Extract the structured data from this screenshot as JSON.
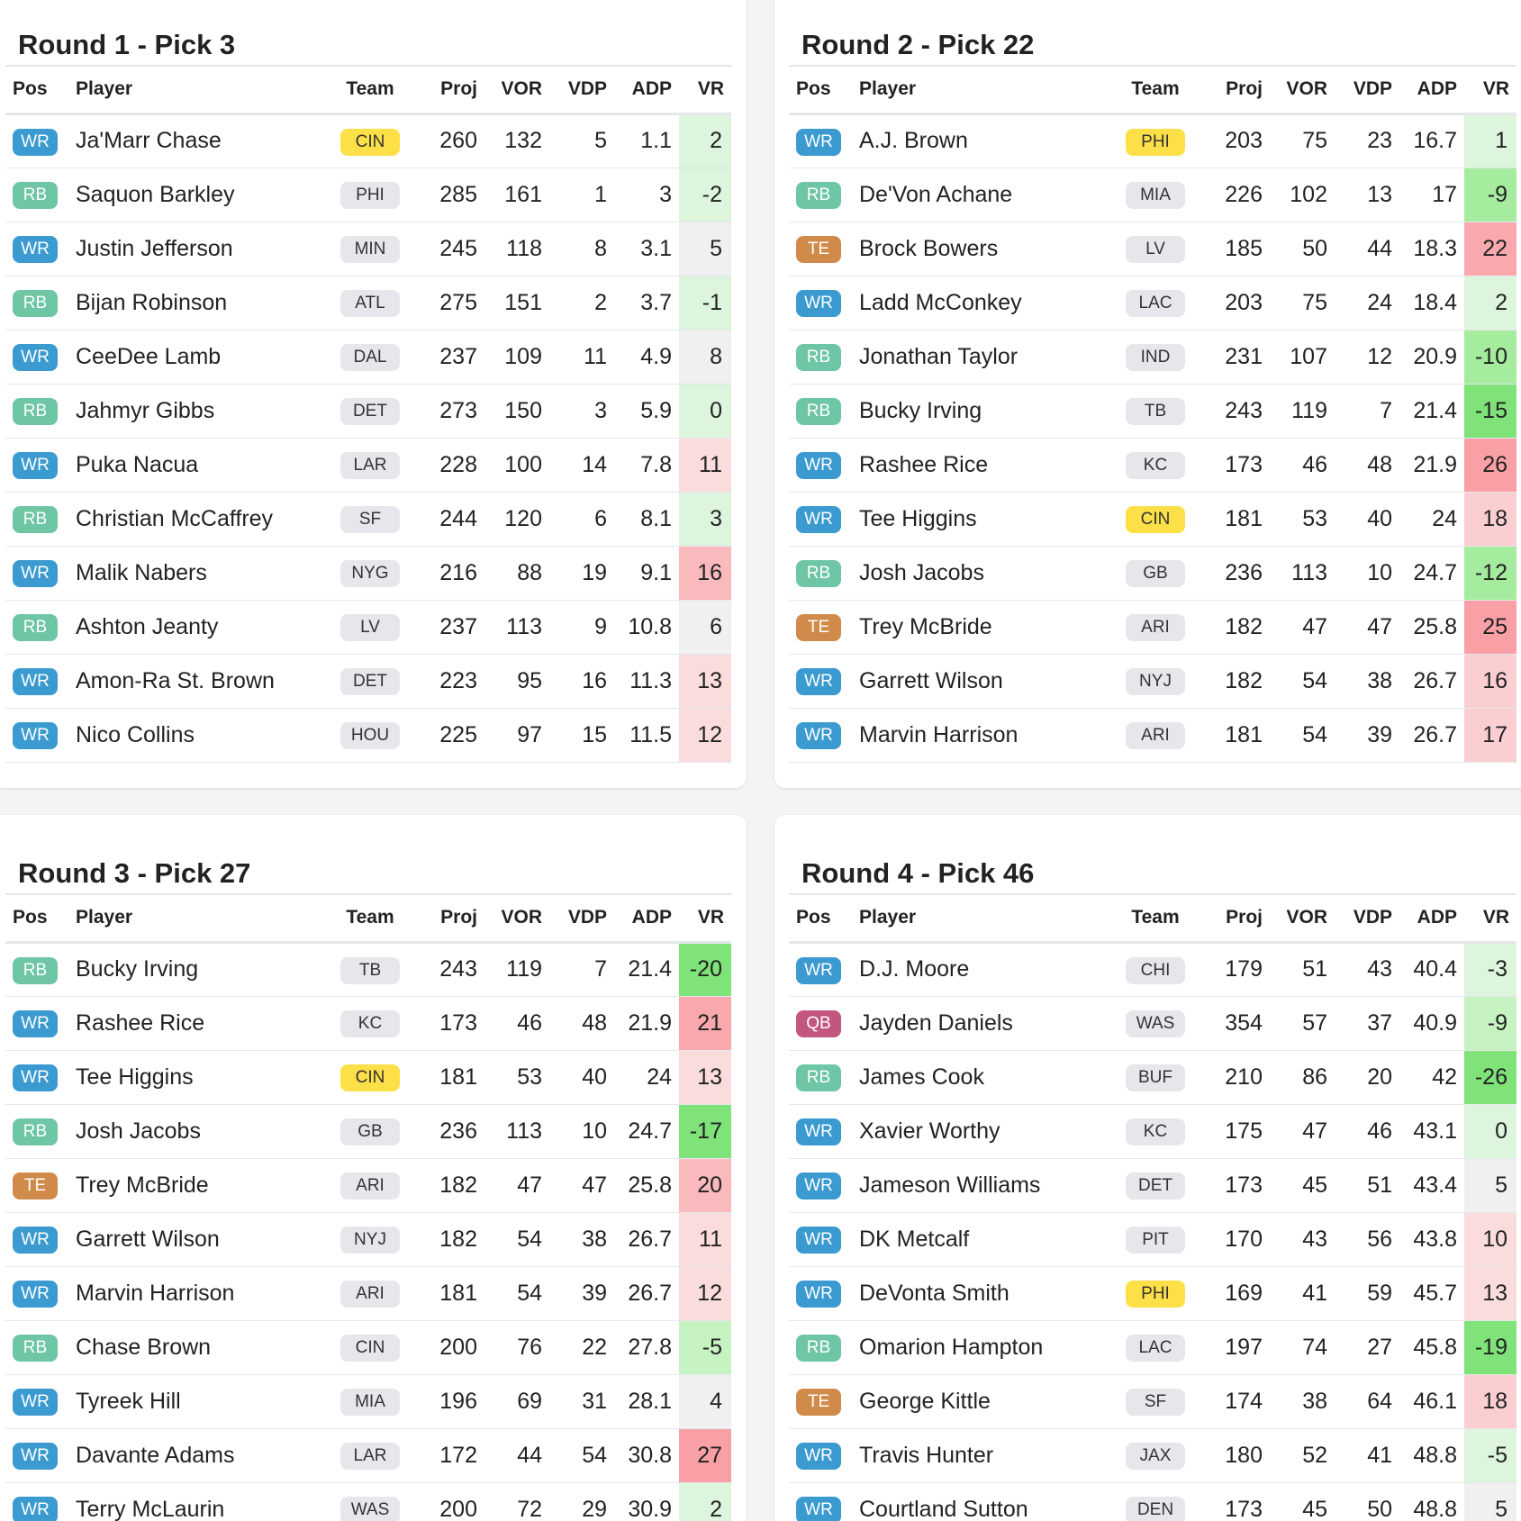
{
  "colors": {
    "WR": "#3b9ad0",
    "RB": "#6ec6a4",
    "TE": "#d08b4a",
    "QB": "#c2567e",
    "team_highlight": "#fde047",
    "vr_neutral": "#f0f0f0"
  },
  "headers": {
    "pos": "Pos",
    "player": "Player",
    "team": "Team",
    "proj": "Proj",
    "vor": "VOR",
    "vdp": "VDP",
    "adp": "ADP",
    "vr": "VR"
  },
  "cards": [
    {
      "title": "Round 1 - Pick 3",
      "rows": [
        {
          "pos": "WR",
          "player": "Ja'Marr Chase",
          "team": "CIN",
          "team_hl": true,
          "proj": "260",
          "vor": "132",
          "vdp": "5",
          "adp": "1.1",
          "vr": "2",
          "vr_bg": "#dcf5dc"
        },
        {
          "pos": "RB",
          "player": "Saquon Barkley",
          "team": "PHI",
          "team_hl": false,
          "proj": "285",
          "vor": "161",
          "vdp": "1",
          "adp": "3",
          "vr": "-2",
          "vr_bg": "#dcf5dc"
        },
        {
          "pos": "WR",
          "player": "Justin Jefferson",
          "team": "MIN",
          "team_hl": false,
          "proj": "245",
          "vor": "118",
          "vdp": "8",
          "adp": "3.1",
          "vr": "5",
          "vr_bg": "#f0f0f0"
        },
        {
          "pos": "RB",
          "player": "Bijan Robinson",
          "team": "ATL",
          "team_hl": false,
          "proj": "275",
          "vor": "151",
          "vdp": "2",
          "adp": "3.7",
          "vr": "-1",
          "vr_bg": "#dcf5dc"
        },
        {
          "pos": "WR",
          "player": "CeeDee Lamb",
          "team": "DAL",
          "team_hl": false,
          "proj": "237",
          "vor": "109",
          "vdp": "11",
          "adp": "4.9",
          "vr": "8",
          "vr_bg": "#f0f0f0"
        },
        {
          "pos": "RB",
          "player": "Jahmyr Gibbs",
          "team": "DET",
          "team_hl": false,
          "proj": "273",
          "vor": "150",
          "vdp": "3",
          "adp": "5.9",
          "vr": "0",
          "vr_bg": "#dcf5dc"
        },
        {
          "pos": "WR",
          "player": "Puka Nacua",
          "team": "LAR",
          "team_hl": false,
          "proj": "228",
          "vor": "100",
          "vdp": "14",
          "adp": "7.8",
          "vr": "11",
          "vr_bg": "#fbdcdc"
        },
        {
          "pos": "RB",
          "player": "Christian McCaffrey",
          "team": "SF",
          "team_hl": false,
          "proj": "244",
          "vor": "120",
          "vdp": "6",
          "adp": "8.1",
          "vr": "3",
          "vr_bg": "#dcf5dc"
        },
        {
          "pos": "WR",
          "player": "Malik Nabers",
          "team": "NYG",
          "team_hl": false,
          "proj": "216",
          "vor": "88",
          "vdp": "19",
          "adp": "9.1",
          "vr": "16",
          "vr_bg": "#f9b9bd"
        },
        {
          "pos": "RB",
          "player": "Ashton Jeanty",
          "team": "LV",
          "team_hl": false,
          "proj": "237",
          "vor": "113",
          "vdp": "9",
          "adp": "10.8",
          "vr": "6",
          "vr_bg": "#f0f0f0"
        },
        {
          "pos": "WR",
          "player": "Amon-Ra St. Brown",
          "team": "DET",
          "team_hl": false,
          "proj": "223",
          "vor": "95",
          "vdp": "16",
          "adp": "11.3",
          "vr": "13",
          "vr_bg": "#fbdcdc"
        },
        {
          "pos": "WR",
          "player": "Nico Collins",
          "team": "HOU",
          "team_hl": false,
          "proj": "225",
          "vor": "97",
          "vdp": "15",
          "adp": "11.5",
          "vr": "12",
          "vr_bg": "#fbdcdc"
        }
      ]
    },
    {
      "title": "Round 2 - Pick 22",
      "rows": [
        {
          "pos": "WR",
          "player": "A.J. Brown",
          "team": "PHI",
          "team_hl": true,
          "proj": "203",
          "vor": "75",
          "vdp": "23",
          "adp": "16.7",
          "vr": "1",
          "vr_bg": "#dcf5dc"
        },
        {
          "pos": "RB",
          "player": "De'Von Achane",
          "team": "MIA",
          "team_hl": false,
          "proj": "226",
          "vor": "102",
          "vdp": "13",
          "adp": "17",
          "vr": "-9",
          "vr_bg": "#a6ec9f"
        },
        {
          "pos": "TE",
          "player": "Brock Bowers",
          "team": "LV",
          "team_hl": false,
          "proj": "185",
          "vor": "50",
          "vdp": "44",
          "adp": "18.3",
          "vr": "22",
          "vr_bg": "#f9a9ae"
        },
        {
          "pos": "WR",
          "player": "Ladd McConkey",
          "team": "LAC",
          "team_hl": false,
          "proj": "203",
          "vor": "75",
          "vdp": "24",
          "adp": "18.4",
          "vr": "2",
          "vr_bg": "#dcf5dc"
        },
        {
          "pos": "RB",
          "player": "Jonathan Taylor",
          "team": "IND",
          "team_hl": false,
          "proj": "231",
          "vor": "107",
          "vdp": "12",
          "adp": "20.9",
          "vr": "-10",
          "vr_bg": "#a6ec9f"
        },
        {
          "pos": "RB",
          "player": "Bucky Irving",
          "team": "TB",
          "team_hl": false,
          "proj": "243",
          "vor": "119",
          "vdp": "7",
          "adp": "21.4",
          "vr": "-15",
          "vr_bg": "#7fe37a"
        },
        {
          "pos": "WR",
          "player": "Rashee Rice",
          "team": "KC",
          "team_hl": false,
          "proj": "173",
          "vor": "46",
          "vdp": "48",
          "adp": "21.9",
          "vr": "26",
          "vr_bg": "#f9a0a6"
        },
        {
          "pos": "WR",
          "player": "Tee Higgins",
          "team": "CIN",
          "team_hl": true,
          "proj": "181",
          "vor": "53",
          "vdp": "40",
          "adp": "24",
          "vr": "18",
          "vr_bg": "#fbcfd2"
        },
        {
          "pos": "RB",
          "player": "Josh Jacobs",
          "team": "GB",
          "team_hl": false,
          "proj": "236",
          "vor": "113",
          "vdp": "10",
          "adp": "24.7",
          "vr": "-12",
          "vr_bg": "#a6ec9f"
        },
        {
          "pos": "TE",
          "player": "Trey McBride",
          "team": "ARI",
          "team_hl": false,
          "proj": "182",
          "vor": "47",
          "vdp": "47",
          "adp": "25.8",
          "vr": "25",
          "vr_bg": "#f9a0a6"
        },
        {
          "pos": "WR",
          "player": "Garrett Wilson",
          "team": "NYJ",
          "team_hl": false,
          "proj": "182",
          "vor": "54",
          "vdp": "38",
          "adp": "26.7",
          "vr": "16",
          "vr_bg": "#fbcfd2"
        },
        {
          "pos": "WR",
          "player": "Marvin Harrison",
          "team": "ARI",
          "team_hl": false,
          "proj": "181",
          "vor": "54",
          "vdp": "39",
          "adp": "26.7",
          "vr": "17",
          "vr_bg": "#fbcfd2"
        }
      ]
    },
    {
      "title": "Round 3 - Pick 27",
      "rows": [
        {
          "pos": "RB",
          "player": "Bucky Irving",
          "team": "TB",
          "team_hl": false,
          "proj": "243",
          "vor": "119",
          "vdp": "7",
          "adp": "21.4",
          "vr": "-20",
          "vr_bg": "#7fe37a"
        },
        {
          "pos": "WR",
          "player": "Rashee Rice",
          "team": "KC",
          "team_hl": false,
          "proj": "173",
          "vor": "46",
          "vdp": "48",
          "adp": "21.9",
          "vr": "21",
          "vr_bg": "#f9a9ae"
        },
        {
          "pos": "WR",
          "player": "Tee Higgins",
          "team": "CIN",
          "team_hl": true,
          "proj": "181",
          "vor": "53",
          "vdp": "40",
          "adp": "24",
          "vr": "13",
          "vr_bg": "#fbdcdc"
        },
        {
          "pos": "RB",
          "player": "Josh Jacobs",
          "team": "GB",
          "team_hl": false,
          "proj": "236",
          "vor": "113",
          "vdp": "10",
          "adp": "24.7",
          "vr": "-17",
          "vr_bg": "#7fe37a"
        },
        {
          "pos": "TE",
          "player": "Trey McBride",
          "team": "ARI",
          "team_hl": false,
          "proj": "182",
          "vor": "47",
          "vdp": "47",
          "adp": "25.8",
          "vr": "20",
          "vr_bg": "#f9b9bd"
        },
        {
          "pos": "WR",
          "player": "Garrett Wilson",
          "team": "NYJ",
          "team_hl": false,
          "proj": "182",
          "vor": "54",
          "vdp": "38",
          "adp": "26.7",
          "vr": "11",
          "vr_bg": "#fbdcdc"
        },
        {
          "pos": "WR",
          "player": "Marvin Harrison",
          "team": "ARI",
          "team_hl": false,
          "proj": "181",
          "vor": "54",
          "vdp": "39",
          "adp": "26.7",
          "vr": "12",
          "vr_bg": "#fbdcdc"
        },
        {
          "pos": "RB",
          "player": "Chase Brown",
          "team": "CIN",
          "team_hl": false,
          "proj": "200",
          "vor": "76",
          "vdp": "22",
          "adp": "27.8",
          "vr": "-5",
          "vr_bg": "#c7f2c2"
        },
        {
          "pos": "WR",
          "player": "Tyreek Hill",
          "team": "MIA",
          "team_hl": false,
          "proj": "196",
          "vor": "69",
          "vdp": "31",
          "adp": "28.1",
          "vr": "4",
          "vr_bg": "#f0f0f0"
        },
        {
          "pos": "WR",
          "player": "Davante Adams",
          "team": "LAR",
          "team_hl": false,
          "proj": "172",
          "vor": "44",
          "vdp": "54",
          "adp": "30.8",
          "vr": "27",
          "vr_bg": "#f9a0a6"
        },
        {
          "pos": "WR",
          "player": "Terry McLaurin",
          "team": "WAS",
          "team_hl": false,
          "proj": "200",
          "vor": "72",
          "vdp": "29",
          "adp": "30.9",
          "vr": "2",
          "vr_bg": "#dcf5dc"
        }
      ]
    },
    {
      "title": "Round 4 - Pick 46",
      "rows": [
        {
          "pos": "WR",
          "player": "D.J. Moore",
          "team": "CHI",
          "team_hl": false,
          "proj": "179",
          "vor": "51",
          "vdp": "43",
          "adp": "40.4",
          "vr": "-3",
          "vr_bg": "#dcf5dc"
        },
        {
          "pos": "QB",
          "player": "Jayden Daniels",
          "team": "WAS",
          "team_hl": false,
          "proj": "354",
          "vor": "57",
          "vdp": "37",
          "adp": "40.9",
          "vr": "-9",
          "vr_bg": "#c7f2c2"
        },
        {
          "pos": "RB",
          "player": "James Cook",
          "team": "BUF",
          "team_hl": false,
          "proj": "210",
          "vor": "86",
          "vdp": "20",
          "adp": "42",
          "vr": "-26",
          "vr_bg": "#7fe37a"
        },
        {
          "pos": "WR",
          "player": "Xavier Worthy",
          "team": "KC",
          "team_hl": false,
          "proj": "175",
          "vor": "47",
          "vdp": "46",
          "adp": "43.1",
          "vr": "0",
          "vr_bg": "#dcf5dc"
        },
        {
          "pos": "WR",
          "player": "Jameson Williams",
          "team": "DET",
          "team_hl": false,
          "proj": "173",
          "vor": "45",
          "vdp": "51",
          "adp": "43.4",
          "vr": "5",
          "vr_bg": "#f0f0f0"
        },
        {
          "pos": "WR",
          "player": "DK Metcalf",
          "team": "PIT",
          "team_hl": false,
          "proj": "170",
          "vor": "43",
          "vdp": "56",
          "adp": "43.8",
          "vr": "10",
          "vr_bg": "#fbdcdc"
        },
        {
          "pos": "WR",
          "player": "DeVonta Smith",
          "team": "PHI",
          "team_hl": true,
          "proj": "169",
          "vor": "41",
          "vdp": "59",
          "adp": "45.7",
          "vr": "13",
          "vr_bg": "#fbdcdc"
        },
        {
          "pos": "RB",
          "player": "Omarion Hampton",
          "team": "LAC",
          "team_hl": false,
          "proj": "197",
          "vor": "74",
          "vdp": "27",
          "adp": "45.8",
          "vr": "-19",
          "vr_bg": "#7fe37a"
        },
        {
          "pos": "TE",
          "player": "George Kittle",
          "team": "SF",
          "team_hl": false,
          "proj": "174",
          "vor": "38",
          "vdp": "64",
          "adp": "46.1",
          "vr": "18",
          "vr_bg": "#fbcfd2"
        },
        {
          "pos": "WR",
          "player": "Travis Hunter",
          "team": "JAX",
          "team_hl": false,
          "proj": "180",
          "vor": "52",
          "vdp": "41",
          "adp": "48.8",
          "vr": "-5",
          "vr_bg": "#dcf5dc"
        },
        {
          "pos": "WR",
          "player": "Courtland Sutton",
          "team": "DEN",
          "team_hl": false,
          "proj": "173",
          "vor": "45",
          "vdp": "50",
          "adp": "48.8",
          "vr": "5",
          "vr_bg": "#f0f0f0"
        }
      ]
    }
  ]
}
